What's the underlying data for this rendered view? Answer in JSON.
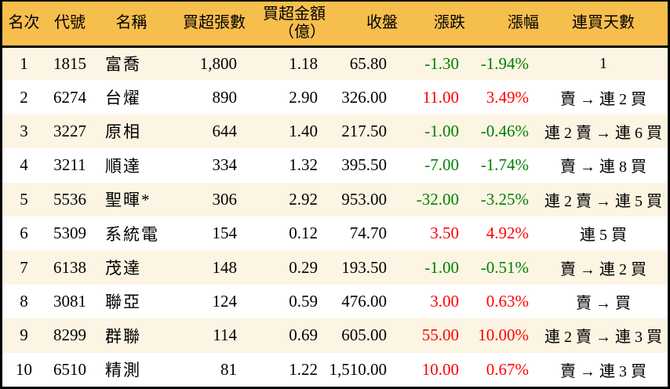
{
  "chart_data": {
    "type": "table",
    "columns": [
      "名次",
      "代號",
      "名稱",
      "買超張數",
      "買超金額（億）",
      "收盤",
      "漲跌",
      "漲幅",
      "連買天數"
    ],
    "column_keys": [
      "rank",
      "code",
      "name",
      "volume",
      "amount",
      "close",
      "change",
      "pct",
      "streak"
    ],
    "amount_header_lines": [
      "買超金額",
      "（億）"
    ],
    "colored_columns": [
      6,
      7
    ],
    "color_rule": "negative values green (down), positive values red (up)",
    "rows": [
      [
        "1",
        "1815",
        "富喬",
        "1,800",
        "1.18",
        "65.80",
        "-1.30",
        "-1.94%",
        "1"
      ],
      [
        "2",
        "6274",
        "台燿",
        "890",
        "2.90",
        "326.00",
        "11.00",
        "3.49%",
        "賣 → 連 2 買"
      ],
      [
        "3",
        "3227",
        "原相",
        "644",
        "1.40",
        "217.50",
        "-1.00",
        "-0.46%",
        "連 2 賣 → 連 6 買"
      ],
      [
        "4",
        "3211",
        "順達",
        "334",
        "1.32",
        "395.50",
        "-7.00",
        "-1.74%",
        "賣 → 連 8 買"
      ],
      [
        "5",
        "5536",
        "聖暉*",
        "306",
        "2.92",
        "953.00",
        "-32.00",
        "-3.25%",
        "連 2 賣 → 連 5 買"
      ],
      [
        "6",
        "5309",
        "系統電",
        "154",
        "0.12",
        "74.70",
        "3.50",
        "4.92%",
        "連 5 買"
      ],
      [
        "7",
        "6138",
        "茂達",
        "148",
        "0.29",
        "193.50",
        "-1.00",
        "-0.51%",
        "賣 → 連 2 買"
      ],
      [
        "8",
        "3081",
        "聯亞",
        "124",
        "0.59",
        "476.00",
        "3.00",
        "0.63%",
        "賣 → 買"
      ],
      [
        "9",
        "8299",
        "群聯",
        "114",
        "0.69",
        "605.00",
        "55.00",
        "10.00%",
        "連 2 賣 → 連 3 買"
      ],
      [
        "10",
        "6510",
        "精測",
        "81",
        "1.22",
        "1,510.00",
        "10.00",
        "0.67%",
        "賣 → 連 3 買"
      ]
    ]
  },
  "colors": {
    "header_bg": "#F6BE4D",
    "row_odd_bg": "#FCF5E3",
    "row_even_bg": "#FFFFFF",
    "up_red": "#FF0000",
    "down_green": "#008000",
    "border": "#000000"
  }
}
